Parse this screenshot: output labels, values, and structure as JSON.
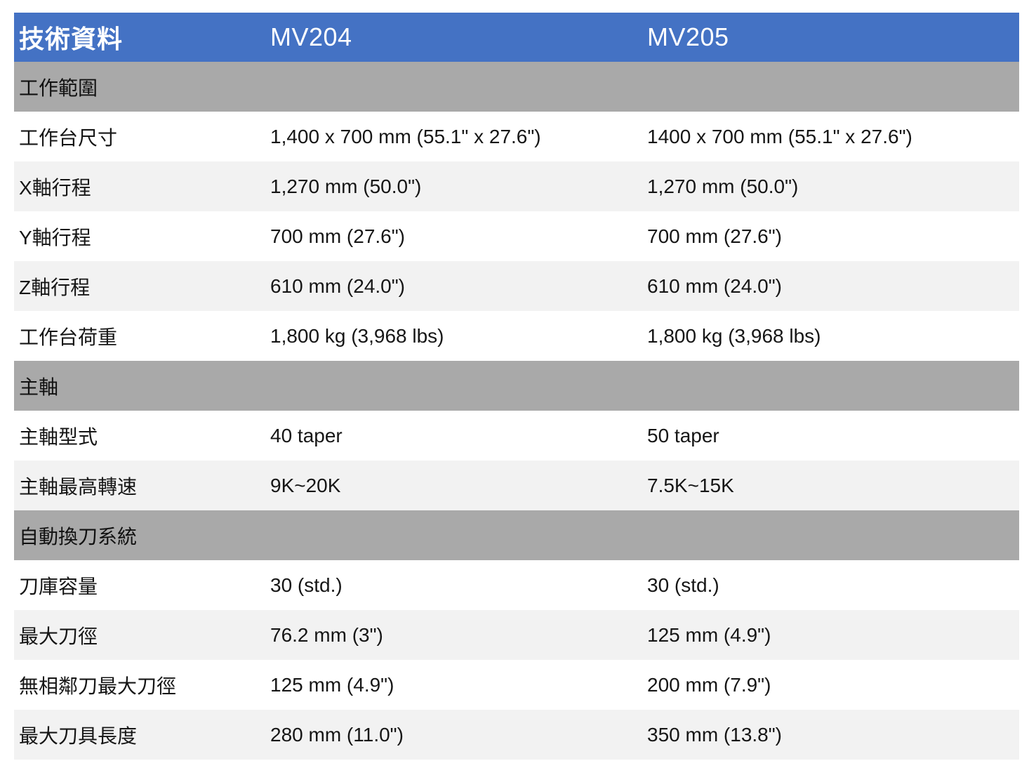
{
  "header": {
    "label": "技術資料",
    "model_a": "MV204",
    "model_b": "MV205"
  },
  "sections": [
    {
      "title": "工作範圍",
      "rows": [
        {
          "label": "工作台尺寸",
          "a": "1,400 x 700 mm (55.1\" x 27.6\")",
          "b": "1400 x 700 mm (55.1\" x 27.6\")"
        },
        {
          "label": "X軸行程",
          "a": "1,270 mm (50.0\")",
          "b": "1,270 mm (50.0\")"
        },
        {
          "label": "Y軸行程",
          "a": "700 mm (27.6\")",
          "b": "700 mm (27.6\")"
        },
        {
          "label": "Z軸行程",
          "a": "610 mm (24.0\")",
          "b": "610 mm (24.0\")"
        },
        {
          "label": "工作台荷重",
          "a": "1,800 kg (3,968 lbs)",
          "b": "1,800 kg (3,968 lbs)"
        }
      ]
    },
    {
      "title": "主軸",
      "rows": [
        {
          "label": "主軸型式",
          "a": "40 taper",
          "b": "50 taper"
        },
        {
          "label": "主軸最高轉速",
          "a": "9K~20K",
          "b": "7.5K~15K"
        }
      ]
    },
    {
      "title": "自動換刀系統",
      "rows": [
        {
          "label": "刀庫容量",
          "a": "30 (std.)",
          "b": "30 (std.)"
        },
        {
          "label": "最大刀徑",
          "a": "76.2 mm (3\")",
          "b": "125 mm (4.9\")"
        },
        {
          "label": "無相鄰刀最大刀徑",
          "a": "125 mm (4.9\")",
          "b": "200 mm (7.9\")"
        },
        {
          "label": "最大刀具長度",
          "a": "280 mm (11.0\")",
          "b": "350 mm (13.8\")"
        }
      ]
    }
  ],
  "colors": {
    "header_bg": "#4472c4",
    "section_bg": "#a9a9a9",
    "stripe_bg": "#f2f2f2"
  }
}
